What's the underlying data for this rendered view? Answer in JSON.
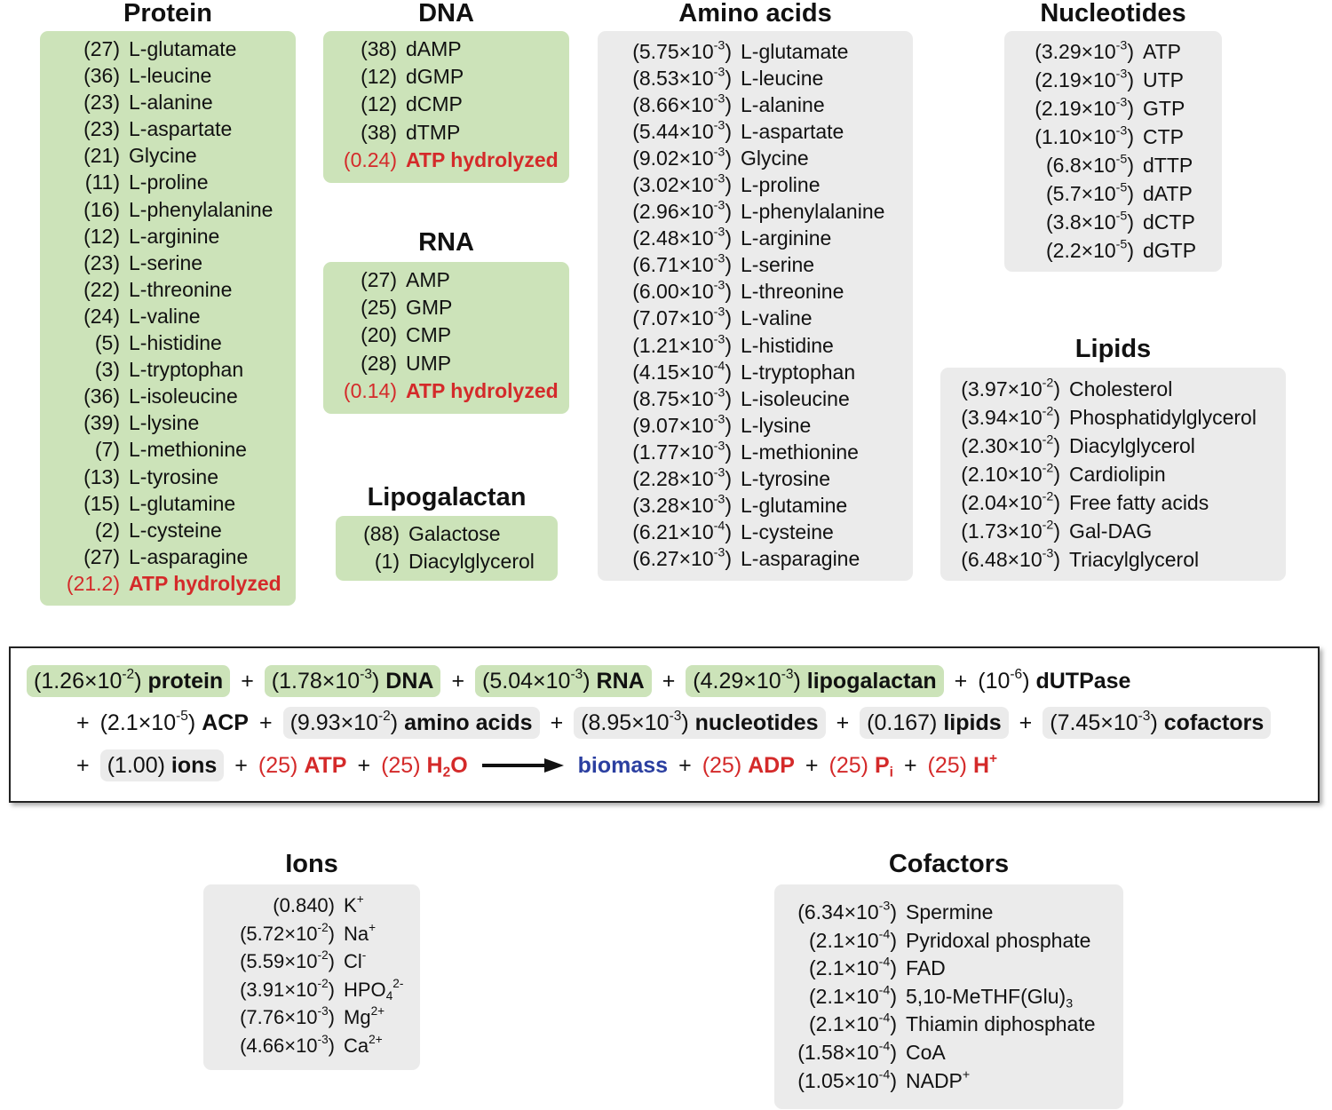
{
  "protein": {
    "title": "Protein",
    "rows": [
      {
        "coef": "(27)",
        "name": "L-glutamate"
      },
      {
        "coef": "(36)",
        "name": "L-leucine"
      },
      {
        "coef": "(23)",
        "name": "L-alanine"
      },
      {
        "coef": "(23)",
        "name": "L-aspartate"
      },
      {
        "coef": "(21)",
        "name": "Glycine"
      },
      {
        "coef": "(11)",
        "name": "L-proline"
      },
      {
        "coef": "(16)",
        "name": "L-phenylalanine"
      },
      {
        "coef": "(12)",
        "name": "L-arginine"
      },
      {
        "coef": "(23)",
        "name": "L-serine"
      },
      {
        "coef": "(22)",
        "name": "L-threonine"
      },
      {
        "coef": "(24)",
        "name": "L-valine"
      },
      {
        "coef": "(5)",
        "name": "L-histidine"
      },
      {
        "coef": "(3)",
        "name": "L-tryptophan"
      },
      {
        "coef": "(36)",
        "name": "L-isoleucine"
      },
      {
        "coef": "(39)",
        "name": "L-lysine"
      },
      {
        "coef": "(7)",
        "name": "L-methionine"
      },
      {
        "coef": "(13)",
        "name": "L-tyrosine"
      },
      {
        "coef": "(15)",
        "name": "L-glutamine"
      },
      {
        "coef": "(2)",
        "name": "L-cysteine"
      },
      {
        "coef": "(27)",
        "name": "L-asparagine"
      }
    ],
    "atp": {
      "coef": "(21.2)",
      "name": "ATP hydrolyzed"
    }
  },
  "dna": {
    "title": "DNA",
    "rows": [
      {
        "coef": "(38)",
        "name": "dAMP"
      },
      {
        "coef": "(12)",
        "name": "dGMP"
      },
      {
        "coef": "(12)",
        "name": "dCMP"
      },
      {
        "coef": "(38)",
        "name": "dTMP"
      }
    ],
    "atp": {
      "coef": "(0.24)",
      "name": "ATP hydrolyzed"
    }
  },
  "rna": {
    "title": "RNA",
    "rows": [
      {
        "coef": "(27)",
        "name": "AMP"
      },
      {
        "coef": "(25)",
        "name": "GMP"
      },
      {
        "coef": "(20)",
        "name": "CMP"
      },
      {
        "coef": "(28)",
        "name": "UMP"
      }
    ],
    "atp": {
      "coef": "(0.14)",
      "name": "ATP hydrolyzed"
    }
  },
  "lipogalactan": {
    "title": "Lipogalactan",
    "rows": [
      {
        "coef": "(88)",
        "name": "Galactose"
      },
      {
        "coef": "(1)",
        "name": "Diacylglycerol"
      }
    ]
  },
  "amino_acids": {
    "title": "Amino acids",
    "rows": [
      {
        "m": "(5.75×10",
        "e": "-3",
        "c": ")",
        "name": "L-glutamate"
      },
      {
        "m": "(8.53×10",
        "e": "-3",
        "c": ")",
        "name": "L-leucine"
      },
      {
        "m": "(8.66×10",
        "e": "-3",
        "c": ")",
        "name": "L-alanine"
      },
      {
        "m": "(5.44×10",
        "e": "-3",
        "c": ")",
        "name": "L-aspartate"
      },
      {
        "m": "(9.02×10",
        "e": "-3",
        "c": ")",
        "name": "Glycine"
      },
      {
        "m": "(3.02×10",
        "e": "-3",
        "c": ")",
        "name": "L-proline"
      },
      {
        "m": "(2.96×10",
        "e": "-3",
        "c": ")",
        "name": "L-phenylalanine"
      },
      {
        "m": "(2.48×10",
        "e": "-3",
        "c": ")",
        "name": "L-arginine"
      },
      {
        "m": "(6.71×10",
        "e": "-3",
        "c": ")",
        "name": "L-serine"
      },
      {
        "m": "(6.00×10",
        "e": "-3",
        "c": ")",
        "name": "L-threonine"
      },
      {
        "m": "(7.07×10",
        "e": "-3",
        "c": ")",
        "name": "L-valine"
      },
      {
        "m": "(1.21×10",
        "e": "-3",
        "c": ")",
        "name": "L-histidine"
      },
      {
        "m": "(4.15×10",
        "e": "-4",
        "c": ")",
        "name": "L-tryptophan"
      },
      {
        "m": "(8.75×10",
        "e": "-3",
        "c": ")",
        "name": "L-isoleucine"
      },
      {
        "m": "(9.07×10",
        "e": "-3",
        "c": ")",
        "name": "L-lysine"
      },
      {
        "m": "(1.77×10",
        "e": "-3",
        "c": ")",
        "name": "L-methionine"
      },
      {
        "m": "(2.28×10",
        "e": "-3",
        "c": ")",
        "name": "L-tyrosine"
      },
      {
        "m": "(3.28×10",
        "e": "-3",
        "c": ")",
        "name": "L-glutamine"
      },
      {
        "m": "(6.21×10",
        "e": "-4",
        "c": ")",
        "name": "L-cysteine"
      },
      {
        "m": "(6.27×10",
        "e": "-3",
        "c": ")",
        "name": "L-asparagine"
      }
    ]
  },
  "nucleotides": {
    "title": "Nucleotides",
    "rows": [
      {
        "m": "(3.29×10",
        "e": "-3",
        "c": ")",
        "name": "ATP"
      },
      {
        "m": "(2.19×10",
        "e": "-3",
        "c": ")",
        "name": "UTP"
      },
      {
        "m": "(2.19×10",
        "e": "-3",
        "c": ")",
        "name": "GTP"
      },
      {
        "m": "(1.10×10",
        "e": "-3",
        "c": ")",
        "name": "CTP"
      },
      {
        "m": "(6.8×10",
        "e": "-5",
        "c": ")",
        "name": "dTTP"
      },
      {
        "m": "(5.7×10",
        "e": "-5",
        "c": ")",
        "name": "dATP"
      },
      {
        "m": "(3.8×10",
        "e": "-5",
        "c": ")",
        "name": "dCTP"
      },
      {
        "m": "(2.2×10",
        "e": "-5",
        "c": ")",
        "name": "dGTP"
      }
    ]
  },
  "lipids": {
    "title": "Lipids",
    "rows": [
      {
        "m": "(3.97×10",
        "e": "-2",
        "c": ")",
        "name": "Cholesterol"
      },
      {
        "m": "(3.94×10",
        "e": "-2",
        "c": ")",
        "name": "Phosphatidylglycerol"
      },
      {
        "m": "(2.30×10",
        "e": "-2",
        "c": ")",
        "name": "Diacylglycerol"
      },
      {
        "m": "(2.10×10",
        "e": "-2",
        "c": ")",
        "name": "Cardiolipin"
      },
      {
        "m": "(2.04×10",
        "e": "-2",
        "c": ")",
        "name": "Free fatty acids"
      },
      {
        "m": "(1.73×10",
        "e": "-2",
        "c": ")",
        "name": "Gal-DAG"
      },
      {
        "m": "(6.48×10",
        "e": "-3",
        "c": ")",
        "name": "Triacylglycerol"
      }
    ]
  },
  "ions": {
    "title": "Ions",
    "rows": [
      {
        "m": "(0.840)",
        "e": "",
        "c": "",
        "name": "K",
        "nsup": "+",
        "nsub": "",
        "nsup2": ""
      },
      {
        "m": "(5.72×10",
        "e": "-2",
        "c": ")",
        "name": "Na",
        "nsup": "+",
        "nsub": "",
        "nsup2": ""
      },
      {
        "m": "(5.59×10",
        "e": "-2",
        "c": ")",
        "name": "Cl",
        "nsup": "-",
        "nsub": "",
        "nsup2": ""
      },
      {
        "m": "(3.91×10",
        "e": "-2",
        "c": ")",
        "name": "HPO",
        "nsup": "",
        "nsub": "4",
        "nsup2": "2-"
      },
      {
        "m": "(7.76×10",
        "e": "-3",
        "c": ")",
        "name": "Mg",
        "nsup": "2+",
        "nsub": "",
        "nsup2": ""
      },
      {
        "m": "(4.66×10",
        "e": "-3",
        "c": ")",
        "name": "Ca",
        "nsup": "2+",
        "nsub": "",
        "nsup2": ""
      }
    ]
  },
  "cofactors": {
    "title": "Cofactors",
    "rows": [
      {
        "m": "(6.34×10",
        "e": "-3",
        "c": ")",
        "name": "Spermine",
        "nsub": "",
        "nsup": ""
      },
      {
        "m": "(2.1×10",
        "e": "-4",
        "c": ")",
        "name": "Pyridoxal phosphate",
        "nsub": "",
        "nsup": ""
      },
      {
        "m": "(2.1×10",
        "e": "-4",
        "c": ")",
        "name": "FAD",
        "nsub": "",
        "nsup": ""
      },
      {
        "m": "(2.1×10",
        "e": "-4",
        "c": ")",
        "name": "5,10-MeTHF(Glu)",
        "nsub": "3",
        "nsup": ""
      },
      {
        "m": "(2.1×10",
        "e": "-4",
        "c": ")",
        "name": "Thiamin diphosphate",
        "nsub": "",
        "nsup": ""
      },
      {
        "m": "(1.58×10",
        "e": "-4",
        "c": ")",
        "name": "CoA",
        "nsub": "",
        "nsup": ""
      },
      {
        "m": "(1.05×10",
        "e": "-4",
        "c": ")",
        "name": "NADP",
        "nsub": "",
        "nsup": "+"
      }
    ]
  },
  "equation": {
    "line1": [
      {
        "type": "pill",
        "color": "green",
        "m": "(1.26×10",
        "e": "-2",
        "c": ")",
        "name": "protein"
      },
      {
        "type": "plus"
      },
      {
        "type": "pill",
        "color": "green",
        "m": "(1.78×10",
        "e": "-3",
        "c": ")",
        "name": "DNA"
      },
      {
        "type": "plus"
      },
      {
        "type": "pill",
        "color": "green",
        "m": "(5.04×10",
        "e": "-3",
        "c": ")",
        "name": "RNA"
      },
      {
        "type": "plus"
      },
      {
        "type": "pill",
        "color": "green",
        "m": "(4.29×10",
        "e": "-3",
        "c": ")",
        "name": "lipogalactan"
      },
      {
        "type": "plus"
      },
      {
        "type": "term",
        "m": "(10",
        "e": "-6",
        "c": ")",
        "name": "dUTPase"
      }
    ],
    "line2": [
      {
        "type": "plus"
      },
      {
        "type": "term",
        "m": "(2.1×10",
        "e": "-5",
        "c": ")",
        "name": "ACP"
      },
      {
        "type": "plus"
      },
      {
        "type": "pill",
        "color": "grey",
        "m": "(9.93×10",
        "e": "-2",
        "c": ")",
        "name": "amino acids"
      },
      {
        "type": "plus"
      },
      {
        "type": "pill",
        "color": "grey",
        "m": "(8.95×10",
        "e": "-3",
        "c": ")",
        "name": "nucleotides"
      },
      {
        "type": "plus"
      },
      {
        "type": "pill",
        "color": "grey",
        "m": "(0.167)",
        "e": "",
        "c": "",
        "name": "lipids"
      },
      {
        "type": "plus"
      },
      {
        "type": "pill",
        "color": "grey",
        "m": "(7.45×10",
        "e": "-3",
        "c": ")",
        "name": "cofactors"
      }
    ],
    "line3": [
      {
        "type": "plus"
      },
      {
        "type": "pill",
        "color": "grey",
        "m": "(1.00)",
        "e": "",
        "c": "",
        "name": "ions"
      },
      {
        "type": "plus"
      },
      {
        "type": "red",
        "m": "(25)",
        "name": "ATP",
        "nsub": "",
        "nsup": "",
        "ntail": ""
      },
      {
        "type": "plus"
      },
      {
        "type": "red",
        "m": "(25)",
        "name": "H",
        "nsub": "2",
        "nsup": "",
        "ntail": "O"
      },
      {
        "type": "arrow"
      },
      {
        "type": "blue",
        "name": "biomass"
      },
      {
        "type": "plus"
      },
      {
        "type": "red",
        "m": "(25)",
        "name": "ADP",
        "nsub": "",
        "nsup": "",
        "ntail": ""
      },
      {
        "type": "plus"
      },
      {
        "type": "red",
        "m": "(25)",
        "name": "P",
        "nsub": "i",
        "nsup": "",
        "ntail": ""
      },
      {
        "type": "plus"
      },
      {
        "type": "red",
        "m": "(25)",
        "name": "H",
        "nsub": "",
        "nsup": "+",
        "ntail": ""
      }
    ],
    "plus_sign": "+"
  },
  "colors": {
    "green_box": "#cce3b9",
    "grey_box": "#ebebeb",
    "red_text": "#d42a2a",
    "blue_text": "#2b3fa0"
  }
}
